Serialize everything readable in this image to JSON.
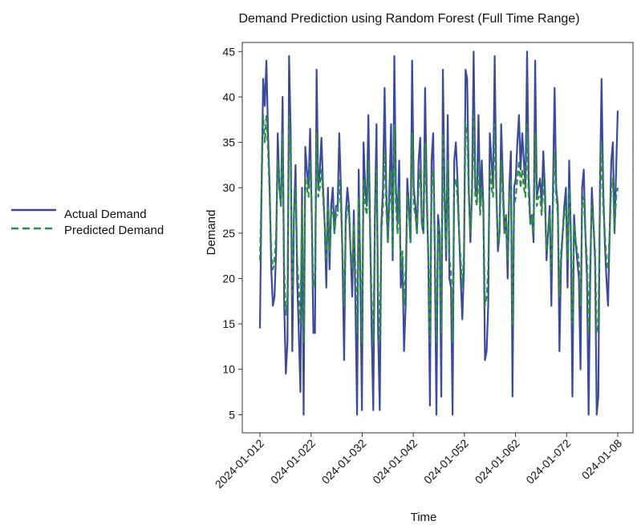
{
  "chart_data": {
    "type": "line",
    "title": "Demand Prediction using Random Forest (Full Time Range)",
    "xlabel": "Time",
    "ylabel": "Demand",
    "xlim": [
      "2024-01-01",
      "2024-01-08"
    ],
    "ylim": [
      3,
      46
    ],
    "grid": false,
    "legend_placement": "outside-left",
    "x_tick_labels": [
      "2024-01-012",
      "024-01-022",
      "024-01-032",
      "024-01-042",
      "024-01-052",
      "024-01-062",
      "024-01-072",
      "024-01-08"
    ],
    "y_ticks": [
      5,
      10,
      15,
      20,
      25,
      30,
      35,
      40,
      45
    ],
    "x_start": "2024-01-01 00:00",
    "x_step_hours": 1,
    "series": [
      {
        "name": "Actual Demand",
        "color": "#3b4a9b",
        "dash": "solid",
        "values": [
          14.5,
          30,
          42,
          39,
          44,
          36,
          30,
          21,
          17,
          18,
          23,
          36,
          30,
          28,
          40,
          17,
          9.5,
          13,
          44.5,
          36,
          12,
          27,
          32.5,
          20,
          14,
          7.5,
          30,
          5,
          34.5,
          32,
          30,
          36.5,
          27,
          14,
          14,
          43,
          30,
          32,
          35.5,
          30,
          26,
          19,
          30,
          21,
          28,
          30,
          25,
          28,
          28,
          36,
          30,
          22,
          11,
          27,
          30,
          28,
          23,
          18,
          27.5,
          17,
          5,
          32,
          20,
          5.5,
          35,
          30,
          28,
          38,
          26,
          14,
          5.5,
          27,
          37,
          14,
          5.5,
          26,
          30,
          41,
          30,
          24,
          30,
          37,
          22,
          44.5,
          30,
          26,
          33,
          19,
          22,
          12,
          17,
          31,
          28,
          24,
          44,
          30,
          28,
          25,
          33,
          35.5,
          26,
          25,
          41,
          30,
          22,
          6,
          33,
          36,
          23,
          5,
          27,
          25,
          7,
          43,
          30,
          22,
          38,
          20,
          19,
          5,
          33,
          35,
          31,
          25,
          20,
          15.5,
          21,
          43,
          42,
          30,
          24,
          30,
          45,
          30,
          29,
          38,
          28,
          33,
          28,
          11,
          12,
          17,
          36,
          33,
          30,
          44.5,
          30,
          23,
          25,
          37,
          31,
          25,
          27,
          20,
          30,
          34,
          7,
          30,
          31,
          35,
          38,
          32,
          36,
          33,
          30,
          45,
          31,
          26,
          27,
          24,
          44,
          29,
          30,
          31,
          28,
          34,
          30,
          22,
          25,
          28,
          17,
          30,
          41,
          30,
          28,
          12,
          22,
          25,
          28,
          30,
          19,
          33,
          25,
          7,
          27,
          24,
          22,
          20,
          10,
          30,
          32,
          25,
          20,
          5,
          20,
          30,
          26,
          22,
          5,
          7,
          30,
          42,
          30,
          24,
          20,
          17,
          25,
          33,
          35,
          25,
          32,
          38.5
        ]
      },
      {
        "name": "Predicted Demand",
        "color": "#2e8b48",
        "dash": "dashed",
        "values": [
          22,
          30,
          38,
          35,
          38,
          34,
          29,
          23,
          21,
          22,
          25,
          33,
          30,
          28,
          36,
          21,
          16,
          18,
          38,
          33,
          18,
          27,
          30,
          22,
          19,
          15,
          28,
          13,
          31,
          30,
          29,
          33,
          27,
          19,
          20,
          36,
          29,
          30,
          32,
          29,
          26,
          22,
          28,
          23,
          27,
          28,
          25,
          27,
          27,
          31,
          28,
          23,
          17,
          26,
          28,
          27,
          23,
          21,
          26,
          21,
          14,
          29,
          22,
          13,
          31,
          28,
          27,
          33,
          25,
          18,
          13,
          26,
          32,
          19,
          13,
          25,
          28,
          34,
          28,
          24,
          28,
          32,
          23,
          37,
          28,
          25,
          30,
          21,
          23,
          17,
          21,
          29,
          27,
          24,
          36,
          28,
          27,
          25,
          30,
          32,
          26,
          25,
          35,
          28,
          23,
          13,
          30,
          32,
          24,
          13,
          26,
          25,
          14,
          36,
          28,
          23,
          33,
          22,
          21,
          13,
          30,
          31,
          29,
          25,
          22,
          19,
          23,
          37,
          36,
          29,
          25,
          29,
          38,
          29,
          28,
          33,
          27,
          30,
          27,
          17,
          18,
          21,
          32,
          30,
          29,
          37,
          29,
          24,
          25,
          33,
          29,
          25,
          27,
          22,
          29,
          31,
          15,
          28,
          29,
          31,
          33,
          30,
          32,
          30,
          29,
          37,
          29,
          26,
          27,
          25,
          36,
          28,
          29,
          29,
          27,
          31,
          28,
          23,
          25,
          27,
          21,
          28,
          34,
          29,
          27,
          18,
          23,
          25,
          27,
          28,
          22,
          30,
          25,
          15,
          26,
          24,
          23,
          22,
          17,
          28,
          29,
          25,
          22,
          14,
          22,
          28,
          26,
          23,
          14,
          15,
          28,
          35,
          28,
          25,
          22,
          21,
          25,
          30,
          31,
          25,
          29,
          30
        ]
      }
    ]
  }
}
